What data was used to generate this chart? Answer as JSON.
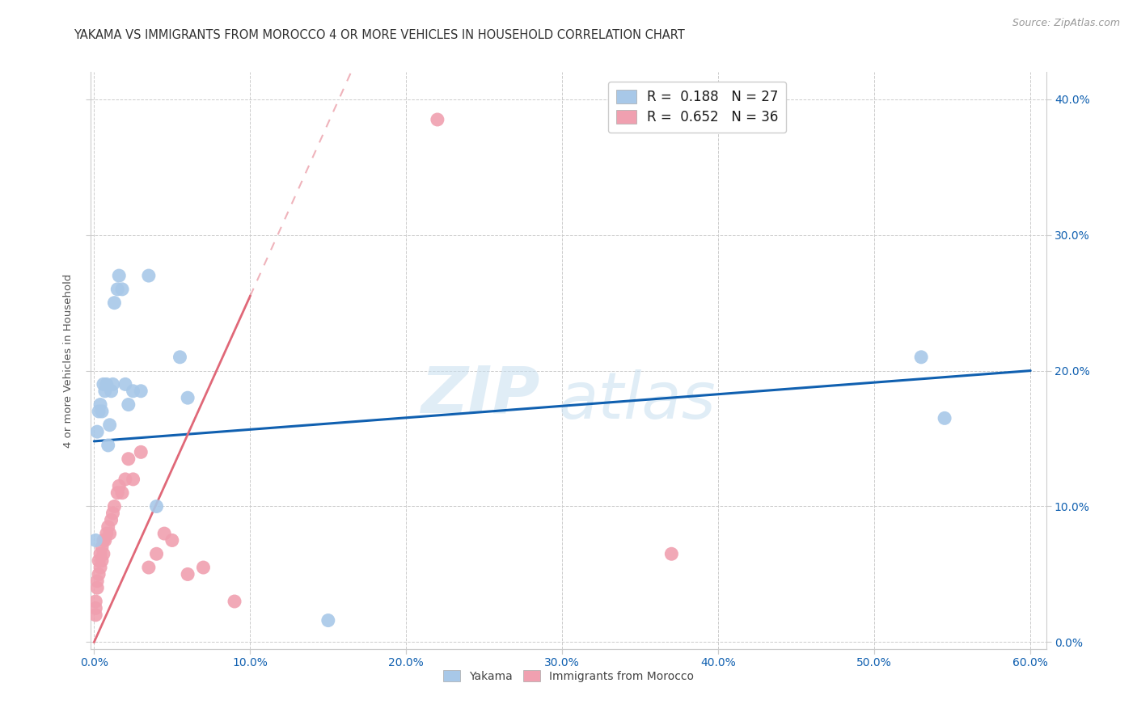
{
  "title": "YAKAMA VS IMMIGRANTS FROM MOROCCO 4 OR MORE VEHICLES IN HOUSEHOLD CORRELATION CHART",
  "source": "Source: ZipAtlas.com",
  "ylabel": "4 or more Vehicles in Household",
  "xlim": [
    -0.002,
    0.61
  ],
  "ylim": [
    -0.005,
    0.42
  ],
  "xticks": [
    0.0,
    0.1,
    0.2,
    0.3,
    0.4,
    0.5,
    0.6
  ],
  "yticks": [
    0.0,
    0.1,
    0.2,
    0.3,
    0.4
  ],
  "watermark_zip": "ZIP",
  "watermark_atlas": "atlas",
  "yakama_color": "#a8c8e8",
  "morocco_color": "#f0a0b0",
  "yakama_line_color": "#1060b0",
  "morocco_line_color": "#e06878",
  "yakama_R": "0.188",
  "yakama_N": "27",
  "morocco_R": "0.652",
  "morocco_N": "36",
  "yakama_scatter_x": [
    0.001,
    0.002,
    0.003,
    0.004,
    0.005,
    0.006,
    0.007,
    0.008,
    0.009,
    0.01,
    0.011,
    0.012,
    0.013,
    0.015,
    0.016,
    0.018,
    0.02,
    0.022,
    0.025,
    0.03,
    0.035,
    0.04,
    0.055,
    0.06,
    0.15,
    0.53,
    0.545
  ],
  "yakama_scatter_y": [
    0.075,
    0.155,
    0.17,
    0.175,
    0.17,
    0.19,
    0.185,
    0.19,
    0.145,
    0.16,
    0.185,
    0.19,
    0.25,
    0.26,
    0.27,
    0.26,
    0.19,
    0.175,
    0.185,
    0.185,
    0.27,
    0.1,
    0.21,
    0.18,
    0.016,
    0.21,
    0.165
  ],
  "morocco_scatter_x": [
    0.001,
    0.001,
    0.001,
    0.002,
    0.002,
    0.003,
    0.003,
    0.004,
    0.004,
    0.005,
    0.005,
    0.006,
    0.006,
    0.007,
    0.008,
    0.009,
    0.01,
    0.011,
    0.012,
    0.013,
    0.015,
    0.016,
    0.018,
    0.02,
    0.022,
    0.025,
    0.03,
    0.035,
    0.04,
    0.045,
    0.05,
    0.06,
    0.07,
    0.09,
    0.22,
    0.37
  ],
  "morocco_scatter_y": [
    0.02,
    0.025,
    0.03,
    0.04,
    0.045,
    0.05,
    0.06,
    0.055,
    0.065,
    0.06,
    0.07,
    0.065,
    0.075,
    0.075,
    0.08,
    0.085,
    0.08,
    0.09,
    0.095,
    0.1,
    0.11,
    0.115,
    0.11,
    0.12,
    0.135,
    0.12,
    0.14,
    0.055,
    0.065,
    0.08,
    0.075,
    0.05,
    0.055,
    0.03,
    0.385,
    0.065
  ],
  "background_color": "#ffffff",
  "grid_color": "#cccccc",
  "title_fontsize": 10.5,
  "label_fontsize": 9.5,
  "tick_fontsize": 10,
  "legend_fontsize": 12
}
